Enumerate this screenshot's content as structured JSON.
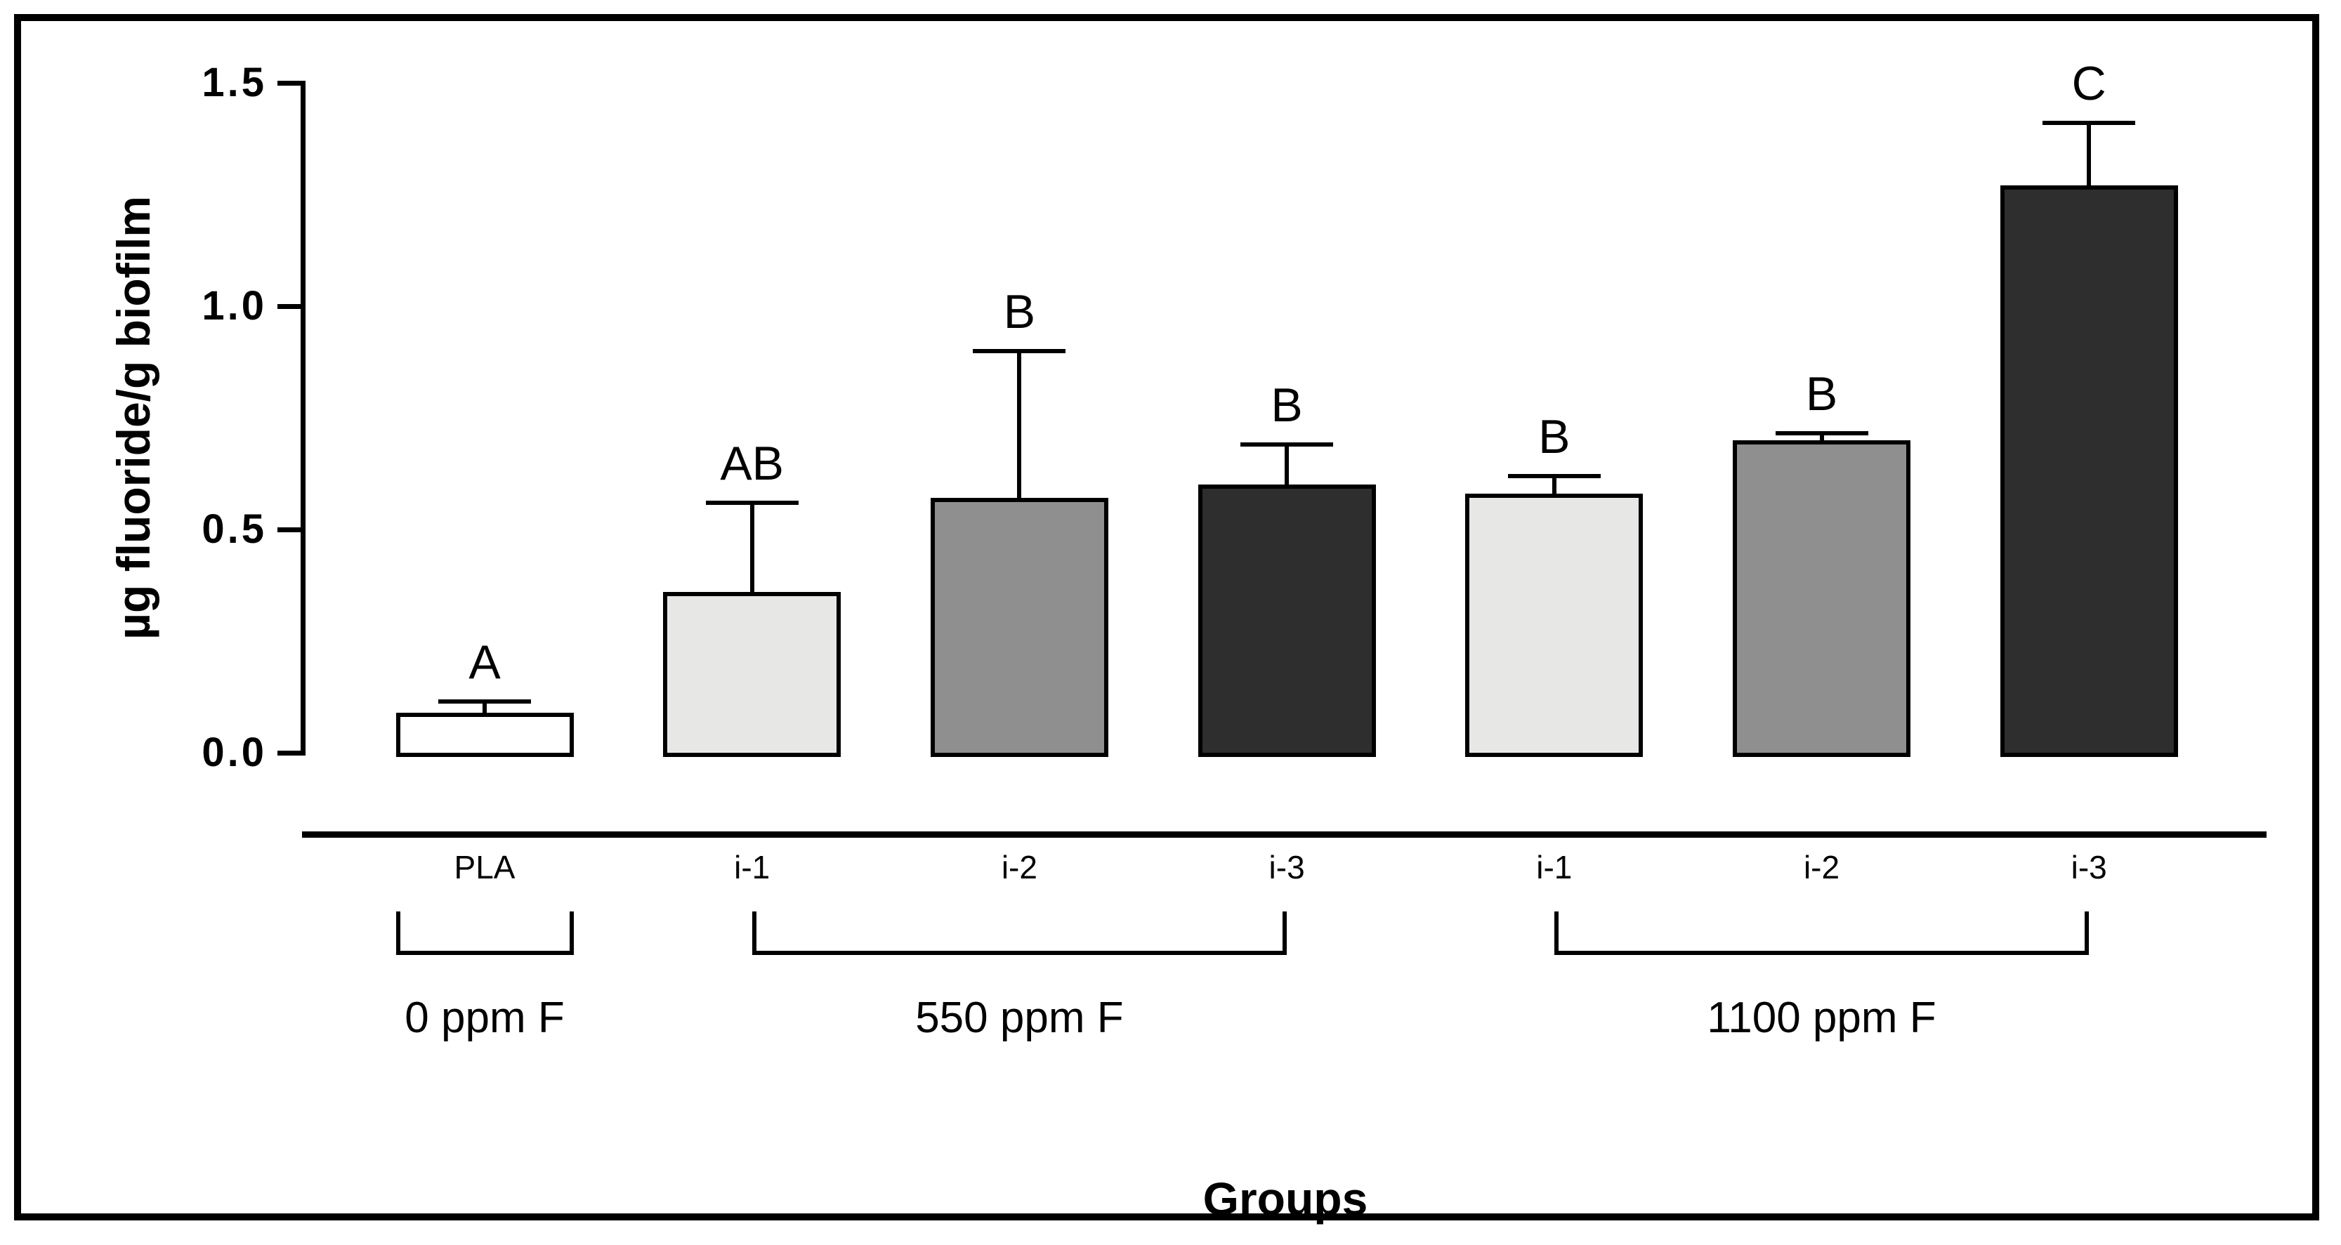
{
  "figure": {
    "background_color": "#ffffff",
    "frame_color": "#000000"
  },
  "chart_data": {
    "type": "bar",
    "title": "",
    "xlabel": "Groups",
    "ylabel": "µg fluoride/g biofilm",
    "ylim": [
      0,
      1.5
    ],
    "yticks": [
      0,
      0.5,
      1.0,
      1.5
    ],
    "ytick_labels": [
      "0.0",
      "0.5",
      "1.0",
      "1.5"
    ],
    "categories": [
      "PLA",
      "i-1",
      "i-2",
      "i-3",
      "i-1",
      "i-2",
      "i-3"
    ],
    "values": [
      0.09,
      0.36,
      0.57,
      0.6,
      0.58,
      0.7,
      1.27
    ],
    "errors_plus": [
      0.025,
      0.2,
      0.33,
      0.09,
      0.04,
      0.015,
      0.14
    ],
    "significance_letters": [
      "A",
      "AB",
      "B",
      "B",
      "B",
      "B",
      "C"
    ],
    "bar_colors": [
      "#ffffff",
      "#e7e7e5",
      "#8f8f8f",
      "#2e2e2e",
      "#e7e7e5",
      "#8f8f8f",
      "#2e2e2e"
    ],
    "bar_border_color": "#000000",
    "error_bar_color": "#000000",
    "grid": false,
    "legend": false,
    "groups": [
      {
        "label": "0 ppm F",
        "bar_start": 0,
        "bar_end": 0,
        "span": "bar-width"
      },
      {
        "label": "550 ppm F",
        "bar_start": 1,
        "bar_end": 3,
        "span": "bar-centers"
      },
      {
        "label": "1100 ppm F",
        "bar_start": 4,
        "bar_end": 6,
        "span": "bar-centers"
      }
    ]
  }
}
